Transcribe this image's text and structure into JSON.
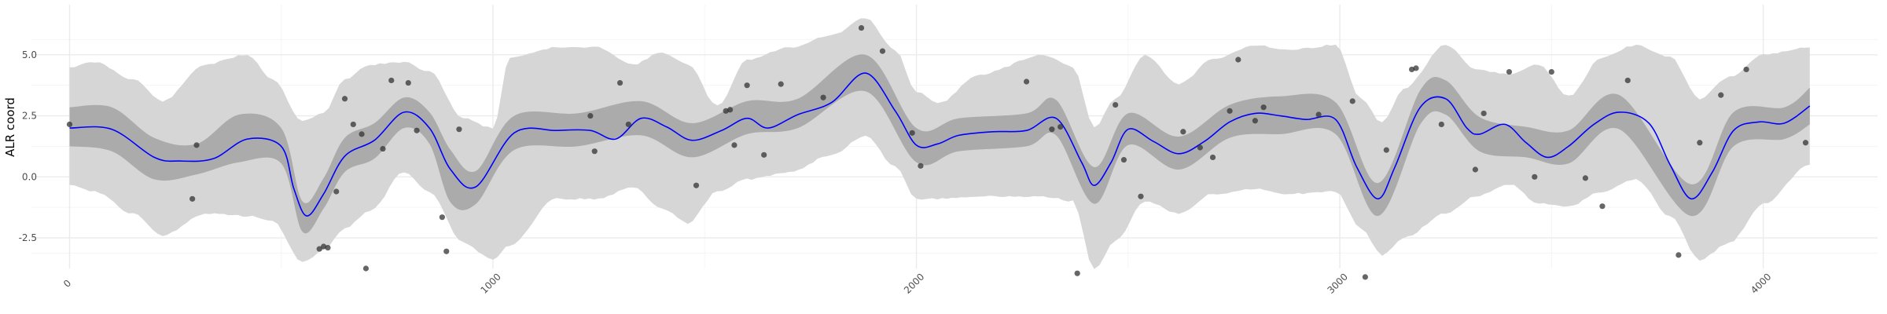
{
  "chart_data": {
    "type": "line",
    "title": "",
    "xlabel": "",
    "ylabel": "ALR coord",
    "xlim": [
      -90,
      4270
    ],
    "ylim": [
      -3.75,
      7.05
    ],
    "xticks": [
      0,
      1000,
      2000,
      3000,
      4000
    ],
    "xtick_labels": [
      "0",
      "1000",
      "2000",
      "3000",
      "4000"
    ],
    "xtick_rotation": -45,
    "yticks": [
      -2.5,
      0,
      2.5,
      5
    ],
    "ytick_labels": [
      "-2.5",
      "0.0",
      "2.5",
      "5.0"
    ],
    "grid": true,
    "legend": "none",
    "colors": {
      "background": "#ffffff",
      "grid_major": "#ebebeb",
      "grid_minor": "#f5f5f5",
      "outer_band": "#d6d6d6",
      "inner_band": "#ababab",
      "line": "#0000ff",
      "points": "#333333"
    },
    "curve": {
      "x": [
        0,
        100,
        200,
        260,
        340,
        420,
        500,
        530,
        560,
        600,
        650,
        720,
        790,
        850,
        900,
        960,
        1050,
        1150,
        1230,
        1290,
        1350,
        1410,
        1470,
        1540,
        1600,
        1650,
        1720,
        1800,
        1880,
        1950,
        2000,
        2050,
        2100,
        2180,
        2260,
        2330,
        2390,
        2420,
        2460,
        2500,
        2560,
        2620,
        2680,
        2740,
        2800,
        2860,
        2920,
        2990,
        3040,
        3090,
        3130,
        3190,
        3250,
        3300,
        3330,
        3390,
        3440,
        3490,
        3540,
        3600,
        3660,
        3730,
        3780,
        3830,
        3880,
        3930,
        3990,
        4050,
        4110
      ],
      "y": [
        2.0,
        1.95,
        0.8,
        0.65,
        0.75,
        1.55,
        1.25,
        -0.5,
        -1.6,
        -0.7,
        0.85,
        1.5,
        2.65,
        2.0,
        0.3,
        -0.4,
        1.8,
        1.9,
        1.9,
        1.55,
        2.4,
        2.05,
        1.5,
        1.9,
        2.4,
        2.0,
        2.55,
        3.05,
        4.25,
        2.7,
        1.3,
        1.35,
        1.7,
        1.85,
        1.9,
        2.4,
        0.6,
        -0.35,
        0.6,
        1.95,
        1.45,
        0.95,
        1.45,
        2.25,
        2.6,
        2.5,
        2.35,
        2.35,
        0.4,
        -0.9,
        0.4,
        2.85,
        3.2,
        2.0,
        1.75,
        2.15,
        1.4,
        0.8,
        1.25,
        2.15,
        2.65,
        2.2,
        0.5,
        -0.9,
        0.2,
        1.9,
        2.25,
        2.2,
        2.9
      ]
    },
    "band_inner": {
      "x": [
        0,
        100,
        200,
        300,
        400,
        500,
        550,
        600,
        650,
        720,
        790,
        850,
        900,
        960,
        1050,
        1200,
        1350,
        1470,
        1600,
        1720,
        1880,
        2000,
        2100,
        2260,
        2330,
        2420,
        2500,
        2620,
        2740,
        2860,
        2990,
        3090,
        3190,
        3250,
        3330,
        3440,
        3540,
        3660,
        3830,
        3930,
        4050,
        4110
      ],
      "lower": [
        1.25,
        1.05,
        -0.1,
        0.1,
        0.6,
        0.55,
        -2.25,
        -1.3,
        0.2,
        0.75,
        2.0,
        1.35,
        -1.05,
        -1.1,
        1.1,
        1.25,
        1.7,
        0.8,
        1.75,
        2.0,
        3.5,
        0.6,
        1.05,
        1.25,
        1.7,
        -1.1,
        1.3,
        0.3,
        1.6,
        1.75,
        1.75,
        -1.6,
        2.15,
        2.55,
        1.05,
        0.8,
        0.55,
        1.95,
        -1.6,
        1.25,
        1.55,
        2.15
      ],
      "upper": [
        2.85,
        2.85,
        1.6,
        1.35,
        2.55,
        2.0,
        -1.0,
        -0.05,
        1.6,
        2.2,
        3.25,
        2.65,
        1.1,
        0.25,
        2.5,
        2.6,
        3.1,
        2.2,
        3.1,
        3.2,
        5.0,
        2.0,
        2.4,
        2.6,
        3.15,
        0.4,
        2.6,
        1.65,
        2.95,
        3.3,
        3.05,
        -0.25,
        3.55,
        3.95,
        2.45,
        2.05,
        1.9,
        3.35,
        -0.3,
        2.65,
        2.85,
        3.65
      ]
    },
    "band_outer": {
      "x": [
        0,
        60,
        150,
        220,
        320,
        420,
        480,
        550,
        600,
        650,
        710,
        790,
        850,
        930,
        1000,
        1040,
        1150,
        1250,
        1330,
        1400,
        1460,
        1530,
        1600,
        1700,
        1800,
        1880,
        1950,
        2000,
        2050,
        2150,
        2300,
        2370,
        2420,
        2470,
        2540,
        2620,
        2700,
        2800,
        2880,
        2990,
        3050,
        3100,
        3150,
        3250,
        3320,
        3400,
        3470,
        3540,
        3620,
        3700,
        3780,
        3850,
        3920,
        4000,
        4110
      ],
      "lower": [
        -0.3,
        -0.6,
        -1.5,
        -2.4,
        -1.5,
        -1.6,
        -1.8,
        -3.5,
        -3.0,
        -2.1,
        -1.4,
        0.2,
        -0.6,
        -2.7,
        -3.4,
        -2.8,
        -0.9,
        -0.9,
        -0.4,
        -1.3,
        -1.9,
        -0.6,
        -0.1,
        0.2,
        0.9,
        1.7,
        0.4,
        -0.9,
        -0.9,
        -0.8,
        -0.8,
        -1.0,
        -3.8,
        -2.6,
        -1.0,
        -1.5,
        -0.7,
        -0.5,
        -0.7,
        -0.6,
        -2.1,
        -3.2,
        -2.5,
        -1.5,
        -0.8,
        -0.3,
        -1.1,
        -1.2,
        -0.6,
        -0.1,
        -1.6,
        -3.4,
        -2.7,
        -1.1,
        0.5
      ],
      "upper": [
        4.5,
        4.7,
        4.0,
        3.1,
        4.6,
        5.0,
        4.0,
        2.3,
        2.6,
        4.0,
        4.6,
        4.7,
        4.3,
        2.4,
        2.0,
        4.9,
        5.3,
        5.3,
        4.6,
        5.1,
        4.6,
        2.9,
        4.8,
        5.3,
        5.8,
        6.5,
        5.2,
        3.5,
        3.0,
        4.2,
        5.0,
        4.5,
        2.0,
        3.2,
        5.0,
        3.8,
        4.8,
        5.4,
        5.2,
        5.4,
        3.2,
        2.2,
        3.6,
        5.4,
        4.4,
        4.2,
        4.6,
        3.3,
        4.9,
        5.4,
        4.9,
        3.2,
        4.1,
        5.0,
        5.3
      ]
    },
    "points": {
      "x": [
        0,
        290,
        300,
        590,
        600,
        610,
        630,
        650,
        670,
        690,
        700,
        740,
        760,
        800,
        820,
        880,
        890,
        920,
        1230,
        1240,
        1300,
        1320,
        1480,
        1550,
        1560,
        1570,
        1600,
        1640,
        1680,
        1780,
        1870,
        1920,
        1990,
        2010,
        2260,
        2320,
        2340,
        2380,
        2470,
        2490,
        2530,
        2630,
        2670,
        2700,
        2740,
        2760,
        2800,
        2820,
        2950,
        3030,
        3060,
        3110,
        3170,
        3180,
        3240,
        3320,
        3340,
        3400,
        3460,
        3500,
        3580,
        3620,
        3680,
        3800,
        3850,
        3900,
        3960,
        4100
      ],
      "y": [
        2.15,
        -0.9,
        1.3,
        -2.95,
        -2.85,
        -2.9,
        -0.6,
        3.2,
        2.15,
        1.75,
        -3.75,
        1.15,
        3.95,
        3.85,
        1.9,
        -1.65,
        -3.05,
        1.95,
        2.5,
        1.05,
        3.85,
        2.15,
        -0.35,
        2.7,
        2.75,
        1.3,
        3.75,
        0.9,
        3.8,
        3.25,
        6.1,
        5.15,
        1.8,
        0.45,
        3.9,
        1.95,
        2.05,
        -3.95,
        2.95,
        0.7,
        -0.8,
        1.85,
        1.2,
        0.8,
        2.7,
        4.8,
        2.3,
        2.85,
        2.55,
        3.1,
        -4.1,
        1.1,
        4.4,
        4.45,
        2.15,
        0.3,
        2.6,
        4.3,
        0.0,
        4.3,
        -0.05,
        -1.2,
        3.95,
        -3.2,
        1.4,
        3.35,
        4.4,
        1.4
      ]
    }
  }
}
